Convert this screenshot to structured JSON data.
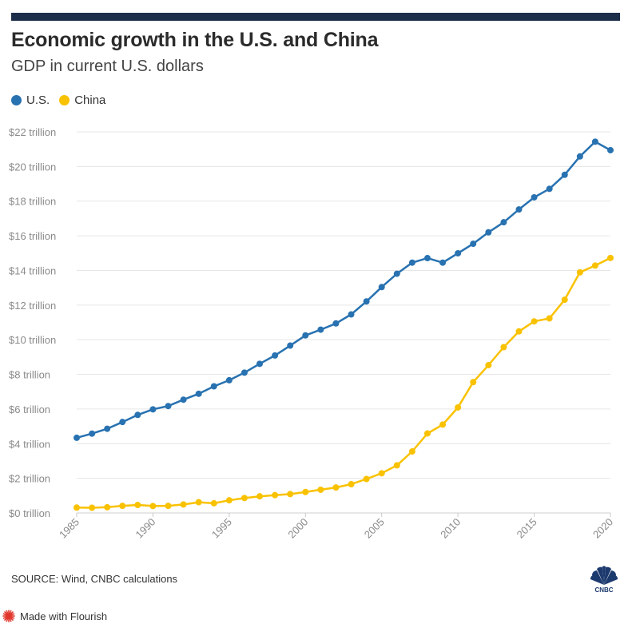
{
  "header": {
    "title": "Economic growth in the U.S. and China",
    "subtitle": "GDP in current U.S. dollars"
  },
  "legend": {
    "items": [
      {
        "label": "U.S.",
        "color": "#2872b1"
      },
      {
        "label": "China",
        "color": "#f9c200"
      }
    ]
  },
  "chart_data": {
    "type": "line",
    "title": "Economic growth in the U.S. and China",
    "subtitle": "GDP in current U.S. dollars",
    "xlabel": "",
    "ylabel": "",
    "x": [
      1985,
      1986,
      1987,
      1988,
      1989,
      1990,
      1991,
      1992,
      1993,
      1994,
      1995,
      1996,
      1997,
      1998,
      1999,
      2000,
      2001,
      2002,
      2003,
      2004,
      2005,
      2006,
      2007,
      2008,
      2009,
      2010,
      2011,
      2012,
      2013,
      2014,
      2015,
      2016,
      2017,
      2018,
      2019,
      2020
    ],
    "xticks": [
      1985,
      1990,
      1995,
      2000,
      2005,
      2010,
      2015,
      2020
    ],
    "ylim": [
      0,
      22
    ],
    "yticks": [
      0,
      2,
      4,
      6,
      8,
      10,
      12,
      14,
      16,
      18,
      20,
      22
    ],
    "ytick_labels": [
      "$0 trillion",
      "$2 trillion",
      "$4 trillion",
      "$6 trillion",
      "$8 trillion",
      "$10 trillion",
      "$12 trillion",
      "$14 trillion",
      "$16 trillion",
      "$18 trillion",
      "$20 trillion",
      "$22 trillion"
    ],
    "grid": true,
    "series": [
      {
        "name": "U.S.",
        "color": "#2872b1",
        "values": [
          4.34,
          4.58,
          4.86,
          5.25,
          5.66,
          5.98,
          6.17,
          6.54,
          6.88,
          7.31,
          7.66,
          8.1,
          8.61,
          9.09,
          9.66,
          10.25,
          10.58,
          10.94,
          11.46,
          12.21,
          13.04,
          13.81,
          14.45,
          14.71,
          14.45,
          14.99,
          15.54,
          16.2,
          16.78,
          17.52,
          18.22,
          18.71,
          19.52,
          20.58,
          21.43,
          20.94
        ]
      },
      {
        "name": "China",
        "color": "#f9c200",
        "values": [
          0.31,
          0.3,
          0.33,
          0.41,
          0.46,
          0.4,
          0.41,
          0.49,
          0.62,
          0.56,
          0.73,
          0.86,
          0.96,
          1.03,
          1.09,
          1.21,
          1.34,
          1.47,
          1.66,
          1.96,
          2.29,
          2.75,
          3.55,
          4.59,
          5.1,
          6.09,
          7.55,
          8.53,
          9.57,
          10.48,
          11.06,
          11.23,
          12.31,
          13.89,
          14.28,
          14.72
        ]
      }
    ]
  },
  "footer": {
    "source": "SOURCE: Wind, CNBC calculations",
    "logo_text": "CNBC",
    "flourish_label": "Made with Flourish"
  }
}
